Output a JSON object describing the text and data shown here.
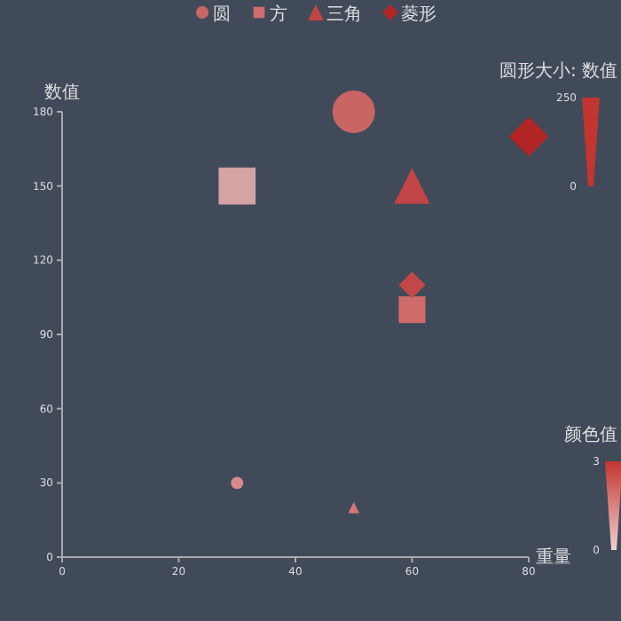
{
  "chart_data": {
    "type": "bubble",
    "xlabel": "重量",
    "ylabel": "数值",
    "xlim": [
      0,
      80
    ],
    "xticks": [
      0,
      20,
      40,
      60,
      80
    ],
    "ylim": [
      0,
      180
    ],
    "yticks": [
      0,
      30,
      60,
      90,
      120,
      150,
      180
    ],
    "series": [
      {
        "name": "圆",
        "color": "#c96565",
        "colors": [
          "#c96565",
          "#d98a8a"
        ],
        "marker": "circle",
        "x": [
          50,
          30
        ],
        "values": [
          180,
          30
        ],
        "sizes": [
          1,
          0.084
        ]
      },
      {
        "name": "方",
        "color": "#d06b6b",
        "colors": [
          "#d4a3a3",
          "#d06b6b"
        ],
        "marker": "square",
        "x": [
          30,
          60
        ],
        "values": [
          150,
          100
        ],
        "sizes": [
          0.96,
          0.5
        ]
      },
      {
        "name": "三角",
        "color": "#c24545",
        "colors": [
          "#c24545",
          "#d47878"
        ],
        "marker": "triangle",
        "x": [
          60,
          50
        ],
        "values": [
          150,
          20
        ],
        "sizes": [
          0.45,
          0.044
        ]
      },
      {
        "name": "菱形",
        "color": "#b22525",
        "colors": [
          "#b22525",
          "#c24848"
        ],
        "marker": "diamond",
        "x": [
          80,
          60
        ],
        "values": [
          170,
          110
        ],
        "sizes": [
          0.55,
          0.25
        ]
      }
    ],
    "annotations": [
      "圆形大小: 数值",
      "250",
      "0",
      "颜色值",
      "3",
      "0"
    ],
    "legend": "top"
  }
}
